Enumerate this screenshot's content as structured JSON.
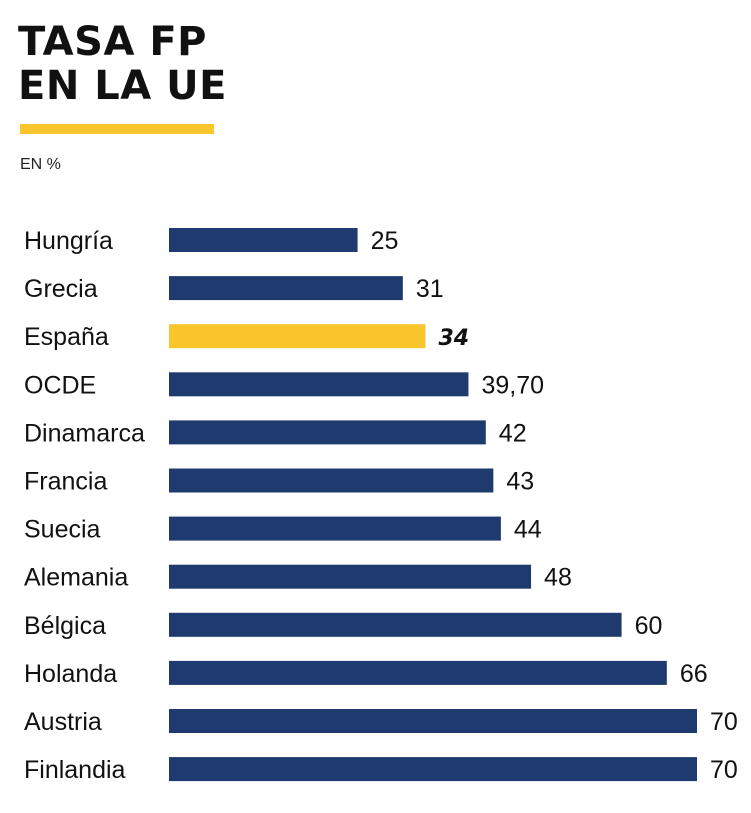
{
  "title_line1": "TASA FP",
  "title_line2": "EN LA UE",
  "unit_label": "EN %",
  "colors": {
    "bar": "#1f3a6e",
    "highlight": "#fbc52c",
    "underline": "#fbc52c"
  },
  "chart_data": {
    "type": "bar",
    "orientation": "horizontal",
    "title": "TASA FP EN LA UE",
    "subtitle": "EN %",
    "categories": [
      "Hungría",
      "Grecia",
      "España",
      "OCDE",
      "Dinamarca",
      "Francia",
      "Suecia",
      "Alemania",
      "Bélgica",
      "Holanda",
      "Austria",
      "Finlandia"
    ],
    "values": [
      25,
      31,
      34,
      39.7,
      42,
      43,
      44,
      48,
      60,
      66,
      70,
      70
    ],
    "value_labels": [
      "25",
      "31",
      "34",
      "39,70",
      "42",
      "43",
      "44",
      "48",
      "60",
      "66",
      "70",
      "70"
    ],
    "highlight_category": "España",
    "xlim": [
      0,
      70
    ],
    "grid": false,
    "xlabel": "",
    "ylabel": ""
  }
}
